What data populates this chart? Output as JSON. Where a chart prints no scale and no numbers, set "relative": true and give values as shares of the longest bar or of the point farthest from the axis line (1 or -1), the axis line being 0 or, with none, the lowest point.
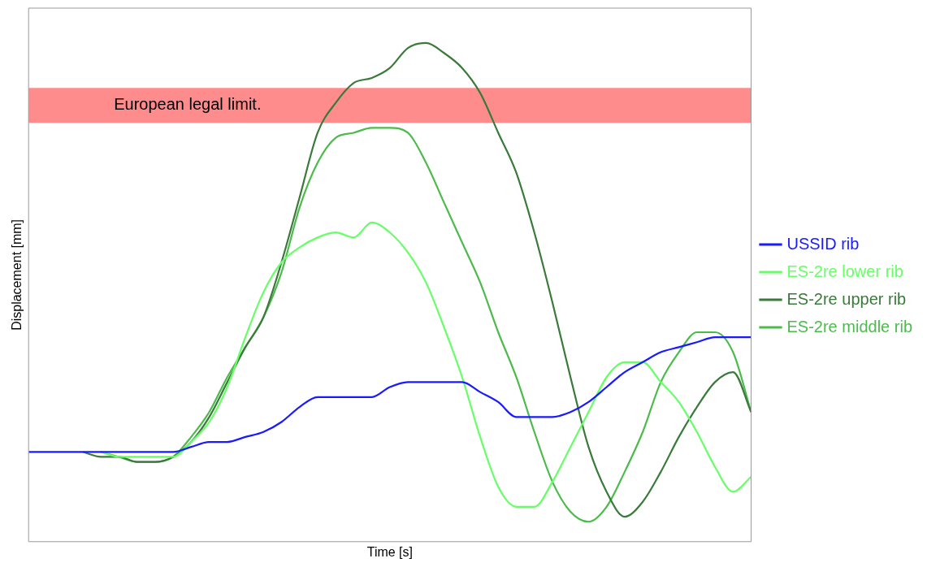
{
  "chart_data": {
    "type": "line",
    "relative": true,
    "xlabel": "Time [s]",
    "ylabel": "Displacement [mm]",
    "grid": false,
    "legend": "right",
    "marker": "none",
    "line_style": "solid",
    "categories": [
      null,
      null,
      null,
      null,
      null,
      null,
      null,
      null,
      null,
      null,
      null,
      null,
      null,
      null,
      null,
      null,
      null,
      null,
      null,
      null,
      null,
      null,
      null,
      null,
      null,
      null,
      null,
      null,
      null,
      null,
      null,
      null,
      null,
      null,
      null,
      null,
      null,
      null,
      null,
      null,
      null
    ],
    "bands": [
      {
        "axis": "y",
        "from": 0.84,
        "to": 0.91,
        "label": "European legal limit.",
        "color": "#ff6666"
      }
    ],
    "series": [
      {
        "name": "USSID rib",
        "color": "#1a1aff",
        "values": [
          0.18,
          0.18,
          0.18,
          0.18,
          0.18,
          0.18,
          0.18,
          0.18,
          0.18,
          0.19,
          0.2,
          0.2,
          0.21,
          0.22,
          0.24,
          0.27,
          0.29,
          0.29,
          0.29,
          0.29,
          0.31,
          0.32,
          0.32,
          0.32,
          0.32,
          0.3,
          0.28,
          0.25,
          0.25,
          0.25,
          0.26,
          0.28,
          0.31,
          0.34,
          0.36,
          0.38,
          0.39,
          0.4,
          0.41,
          0.41,
          0.41
        ]
      },
      {
        "name": "ES-2re lower rib",
        "color": "#66ff66",
        "values": [
          null,
          null,
          null,
          null,
          0.18,
          0.17,
          0.17,
          0.17,
          0.17,
          0.2,
          0.24,
          0.31,
          0.41,
          0.5,
          0.56,
          0.59,
          0.61,
          0.62,
          0.61,
          0.64,
          0.62,
          0.58,
          0.52,
          0.43,
          0.33,
          0.21,
          0.11,
          0.07,
          0.07,
          0.12,
          0.19,
          0.26,
          0.33,
          0.36,
          0.36,
          0.32,
          0.28,
          0.22,
          0.15,
          0.1,
          0.13
        ]
      },
      {
        "name": "ES-2re upper rib",
        "color": "#3a7a3a",
        "values": [
          null,
          null,
          null,
          0.18,
          0.17,
          0.17,
          0.16,
          0.16,
          0.17,
          0.2,
          0.25,
          0.32,
          0.39,
          0.45,
          0.56,
          0.69,
          0.82,
          0.88,
          0.92,
          0.93,
          0.95,
          0.99,
          1.0,
          0.98,
          0.95,
          0.9,
          0.82,
          0.74,
          0.62,
          0.48,
          0.33,
          0.19,
          0.1,
          0.05,
          0.08,
          0.14,
          0.21,
          0.27,
          0.32,
          0.34,
          0.26
        ]
      },
      {
        "name": "ES-2re middle rib",
        "color": "#4cbb4c",
        "values": [
          null,
          null,
          null,
          null,
          0.18,
          0.17,
          0.16,
          0.16,
          0.17,
          0.21,
          0.26,
          0.33,
          0.39,
          0.45,
          0.54,
          0.67,
          0.76,
          0.81,
          0.82,
          0.83,
          0.83,
          0.82,
          0.76,
          0.68,
          0.6,
          0.52,
          0.42,
          0.33,
          0.22,
          0.12,
          0.06,
          0.04,
          0.07,
          0.14,
          0.22,
          0.32,
          0.38,
          0.42,
          0.42,
          0.38,
          0.26
        ]
      }
    ]
  }
}
